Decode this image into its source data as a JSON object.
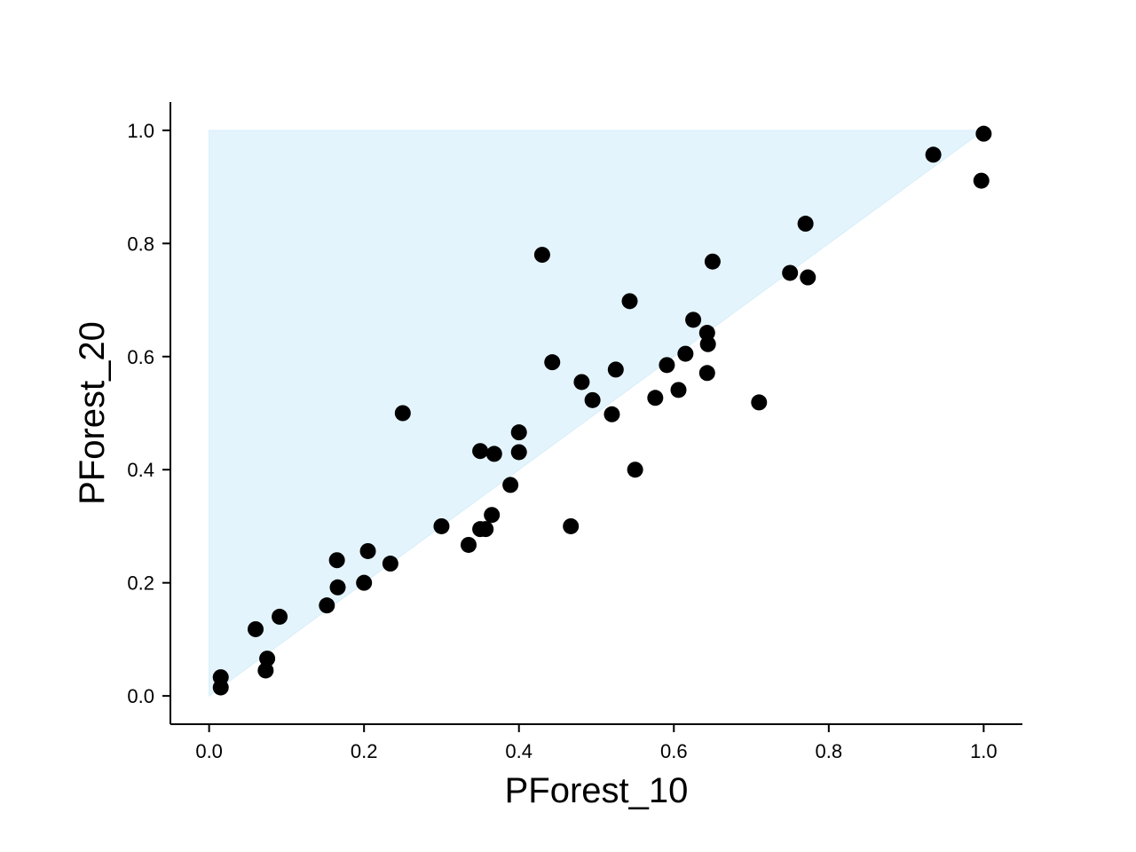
{
  "chart_data": {
    "type": "scatter",
    "xlabel": "PForest_10",
    "ylabel": "PForest_20",
    "xlim": [
      -0.05,
      1.05
    ],
    "ylim": [
      -0.05,
      1.05
    ],
    "xticks": [
      "0.0",
      "0.2",
      "0.4",
      "0.6",
      "0.8",
      "1.0"
    ],
    "yticks": [
      "0.0",
      "0.2",
      "0.4",
      "0.6",
      "0.8",
      "1.0"
    ],
    "grid": false,
    "shaded_region": {
      "polygon": [
        [
          0,
          0
        ],
        [
          0,
          1
        ],
        [
          1,
          1
        ]
      ],
      "color": "#e4f4fc"
    },
    "point_color": "#000000",
    "points": [
      [
        0.015,
        0.033
      ],
      [
        0.015,
        0.015
      ],
      [
        0.06,
        0.118
      ],
      [
        0.075,
        0.066
      ],
      [
        0.073,
        0.045
      ],
      [
        0.091,
        0.14
      ],
      [
        0.152,
        0.16
      ],
      [
        0.165,
        0.24
      ],
      [
        0.166,
        0.192
      ],
      [
        0.2,
        0.2
      ],
      [
        0.205,
        0.256
      ],
      [
        0.234,
        0.234
      ],
      [
        0.25,
        0.5
      ],
      [
        0.3,
        0.3
      ],
      [
        0.335,
        0.267
      ],
      [
        0.35,
        0.433
      ],
      [
        0.35,
        0.295
      ],
      [
        0.357,
        0.295
      ],
      [
        0.365,
        0.32
      ],
      [
        0.368,
        0.428
      ],
      [
        0.389,
        0.373
      ],
      [
        0.4,
        0.466
      ],
      [
        0.4,
        0.431
      ],
      [
        0.43,
        0.78
      ],
      [
        0.443,
        0.59
      ],
      [
        0.467,
        0.3
      ],
      [
        0.481,
        0.555
      ],
      [
        0.495,
        0.523
      ],
      [
        0.52,
        0.498
      ],
      [
        0.525,
        0.577
      ],
      [
        0.543,
        0.698
      ],
      [
        0.55,
        0.4
      ],
      [
        0.576,
        0.527
      ],
      [
        0.591,
        0.585
      ],
      [
        0.606,
        0.541
      ],
      [
        0.615,
        0.605
      ],
      [
        0.625,
        0.665
      ],
      [
        0.643,
        0.642
      ],
      [
        0.644,
        0.622
      ],
      [
        0.643,
        0.571
      ],
      [
        0.65,
        0.768
      ],
      [
        0.71,
        0.519
      ],
      [
        0.75,
        0.748
      ],
      [
        0.77,
        0.835
      ],
      [
        0.773,
        0.74
      ],
      [
        0.935,
        0.957
      ],
      [
        0.997,
        0.911
      ],
      [
        1.0,
        0.994
      ]
    ]
  }
}
